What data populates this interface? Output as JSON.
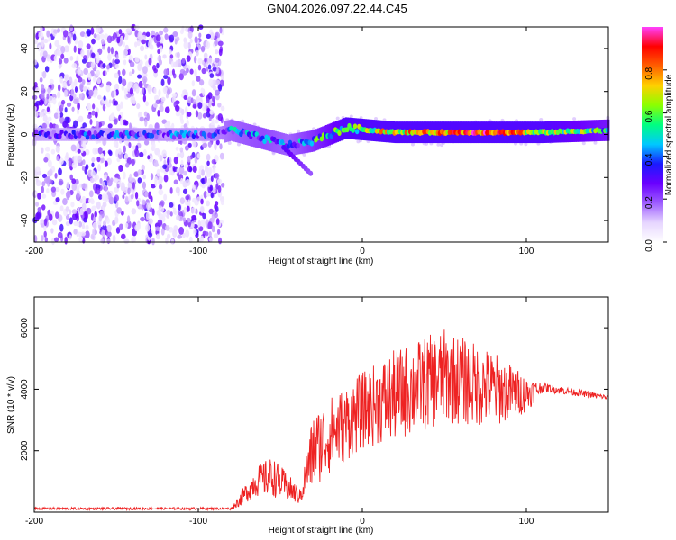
{
  "title": "GN04.2026.097.22.44.C45",
  "chart_data": [
    {
      "type": "heatmap",
      "name": "spectrogram",
      "xlabel": "Height of straight line (km)",
      "ylabel": "Frequency (Hz)",
      "xlim": [
        -200,
        150
      ],
      "ylim": [
        -50,
        50
      ],
      "xticks": [
        "-200",
        "-100",
        "0",
        "100"
      ],
      "xtick_values": [
        -200,
        -100,
        0,
        100
      ],
      "yticks": [
        "-40",
        "-20",
        "0",
        "20",
        "40"
      ],
      "ytick_values": [
        -40,
        -20,
        0,
        20,
        40
      ],
      "colorbar": {
        "label": "Normalized spectral amplitude",
        "range": [
          0,
          1
        ],
        "ticks": [
          "0.0",
          "0.2",
          "0.4",
          "0.6",
          "0.8"
        ],
        "tick_values": [
          0.0,
          0.2,
          0.4,
          0.6,
          0.8
        ],
        "colors": [
          "#ffffff",
          "#e6d5ff",
          "#9d5cff",
          "#6a00ff",
          "#1a1aff",
          "#00c8ff",
          "#00ff80",
          "#8cff00",
          "#ffd000",
          "#ff6000",
          "#ff0000",
          "#ff40ff"
        ]
      },
      "carrier": {
        "description_points": [
          {
            "x": -200,
            "f": 0,
            "amp": 0.25
          },
          {
            "x": -90,
            "f": 0,
            "amp": 0.3
          },
          {
            "x": -80,
            "f": 2,
            "amp": 0.35
          },
          {
            "x": -60,
            "f": -2,
            "amp": 0.4
          },
          {
            "x": -45,
            "f": -5,
            "amp": 0.35
          },
          {
            "x": -30,
            "f": -3,
            "amp": 0.45
          },
          {
            "x": -10,
            "f": 3,
            "amp": 0.6
          },
          {
            "x": 20,
            "f": 1,
            "amp": 0.7
          },
          {
            "x": 80,
            "f": 1,
            "amp": 0.85
          },
          {
            "x": 110,
            "f": 1,
            "amp": 0.6
          },
          {
            "x": 150,
            "f": 2,
            "amp": 0.5
          }
        ],
        "noise_region_end": -85
      }
    },
    {
      "type": "line",
      "name": "snr",
      "xlabel": "Height of straight line (km)",
      "ylabel": "SNR (10 * v/v)",
      "xlim": [
        -200,
        150
      ],
      "ylim": [
        0,
        7000
      ],
      "xticks": [
        "-200",
        "-100",
        "0",
        "100"
      ],
      "xtick_values": [
        -200,
        -100,
        0,
        100
      ],
      "yticks": [
        "2000",
        "4000",
        "6000"
      ],
      "ytick_values": [
        2000,
        4000,
        6000
      ],
      "color": "#ee2222",
      "envelope": [
        {
          "x": -200,
          "base": 100,
          "amp": 80
        },
        {
          "x": -80,
          "base": 100,
          "amp": 80
        },
        {
          "x": -75,
          "base": 300,
          "amp": 400
        },
        {
          "x": -65,
          "base": 800,
          "amp": 1000
        },
        {
          "x": -55,
          "base": 900,
          "amp": 1300
        },
        {
          "x": -45,
          "base": 600,
          "amp": 900
        },
        {
          "x": -38,
          "base": 400,
          "amp": 500
        },
        {
          "x": -30,
          "base": 1500,
          "amp": 2500
        },
        {
          "x": -20,
          "base": 2000,
          "amp": 2500
        },
        {
          "x": 0,
          "base": 2800,
          "amp": 2500
        },
        {
          "x": 20,
          "base": 3200,
          "amp": 3000
        },
        {
          "x": 50,
          "base": 3800,
          "amp": 3100
        },
        {
          "x": 80,
          "base": 3500,
          "amp": 2500
        },
        {
          "x": 100,
          "base": 3600,
          "amp": 1200
        },
        {
          "x": 110,
          "base": 4000,
          "amp": 300
        },
        {
          "x": 150,
          "base": 3700,
          "amp": 150
        }
      ]
    }
  ]
}
